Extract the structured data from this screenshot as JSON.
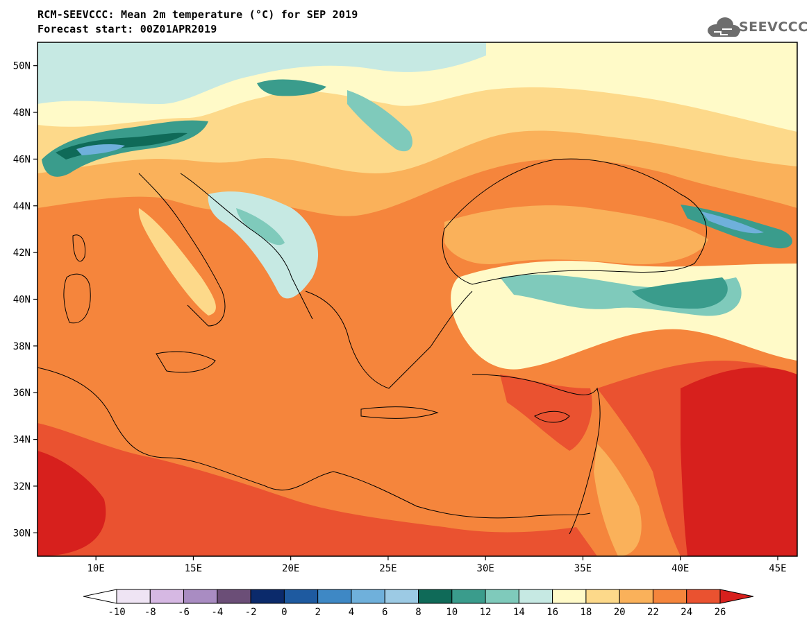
{
  "header": {
    "title_line1": "RCM-SEEVCCC: Mean 2m temperature (°C) for SEP 2019",
    "title_line2": "Forecast start: 00Z01APR2019",
    "logo_text": "SEEVCCC"
  },
  "map": {
    "lat_labels": [
      "50N",
      "48N",
      "46N",
      "44N",
      "42N",
      "40N",
      "38N",
      "36N",
      "34N",
      "32N",
      "30N"
    ],
    "lat_values": [
      50,
      48,
      46,
      44,
      42,
      40,
      38,
      36,
      34,
      32,
      30
    ],
    "lon_labels": [
      "10E",
      "15E",
      "20E",
      "25E",
      "30E",
      "35E",
      "40E",
      "45E"
    ],
    "lon_values": [
      10,
      15,
      20,
      25,
      30,
      35,
      40,
      45
    ],
    "lon_range": [
      7,
      46
    ],
    "lat_range": [
      29,
      51
    ],
    "field": "Mean 2m temperature",
    "unit": "°C"
  },
  "colorbar": {
    "labels": [
      "-10",
      "-8",
      "-6",
      "-4",
      "-2",
      "0",
      "2",
      "4",
      "6",
      "8",
      "10",
      "12",
      "14",
      "16",
      "18",
      "20",
      "22",
      "24",
      "26"
    ],
    "colors": [
      "#ffffff",
      "#efe4f4",
      "#d6b8e3",
      "#a98cc2",
      "#6b4e77",
      "#0b2a6b",
      "#1e5aa0",
      "#3e88c5",
      "#6fb0db",
      "#9ccae4",
      "#0f6a58",
      "#3a9c8c",
      "#7fcabb",
      "#c6e9e3",
      "#fffac8",
      "#fdd98a",
      "#fab15a",
      "#f5853c",
      "#ea5230",
      "#d7201d"
    ]
  }
}
